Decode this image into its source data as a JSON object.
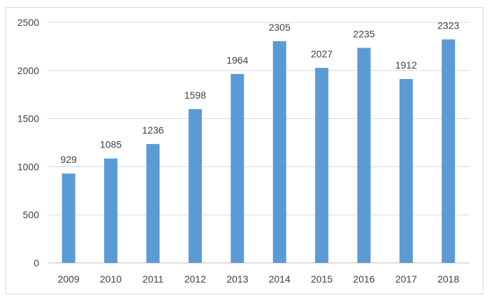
{
  "chart_data": {
    "type": "bar",
    "title": "",
    "xlabel": "",
    "ylabel": "",
    "categories": [
      "2009",
      "2010",
      "2011",
      "2012",
      "2013",
      "2014",
      "2015",
      "2016",
      "2017",
      "2018"
    ],
    "values": [
      929,
      1085,
      1236,
      1598,
      1964,
      2305,
      2027,
      2235,
      1912,
      2323
    ],
    "ylim": [
      0,
      2500
    ],
    "yticks": [
      0,
      500,
      1000,
      1500,
      2000,
      2500
    ],
    "grid": true,
    "legend": "none",
    "data_labels": true,
    "colors": {
      "bar": "#5b9bd5",
      "grid": "#d9d9d9",
      "text": "#404040",
      "frame": "#d9d9d9"
    }
  }
}
